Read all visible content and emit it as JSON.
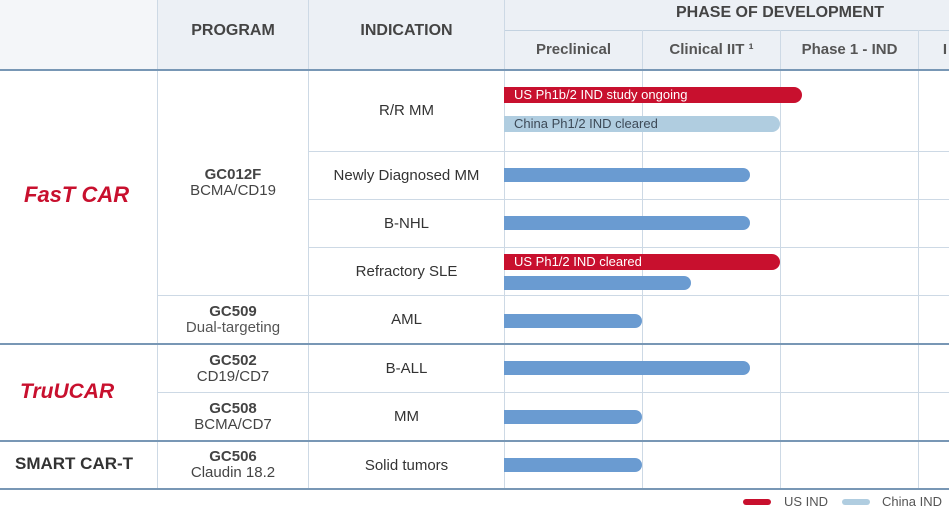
{
  "header": {
    "program": "PROGRAM",
    "indication": "INDICATION",
    "phase_group": "PHASE OF DEVELOPMENT",
    "phases": [
      "Preclinical",
      "Clinical IIT ¹",
      "Phase 1 - IND"
    ]
  },
  "platforms": {
    "fastcar": "FasT CAR",
    "trucar": "TruUCAR",
    "smartcart": "SMART CAR-T"
  },
  "programs": [
    {
      "name": "GC012F",
      "target": "BCMA/CD19"
    },
    {
      "name": "GC509",
      "target": "Dual-targeting"
    },
    {
      "name": "GC502",
      "target": "CD19/CD7"
    },
    {
      "name": "GC508",
      "target": "BCMA/CD7"
    },
    {
      "name": "GC506",
      "target": "Claudin 18.2"
    }
  ],
  "indications": [
    "R/R MM",
    "Newly Diagnosed MM",
    "B-NHL",
    "Refractory SLE",
    "AML",
    "B-ALL",
    "MM",
    "Solid tumors"
  ],
  "bar_labels": {
    "rrmm_us": "US Ph1b/2 IND study ongoing",
    "rrmm_china": "China Ph1/2 IND cleared",
    "sle_us": "US Ph1/2 IND cleared"
  },
  "legend": {
    "us": "US IND",
    "china": "China IND"
  },
  "colors": {
    "us_ind": "#c8102e",
    "china_ind": "#b0cde0",
    "program_bar": "#6a9bd1",
    "header_bg": "#ecf0f5"
  }
}
